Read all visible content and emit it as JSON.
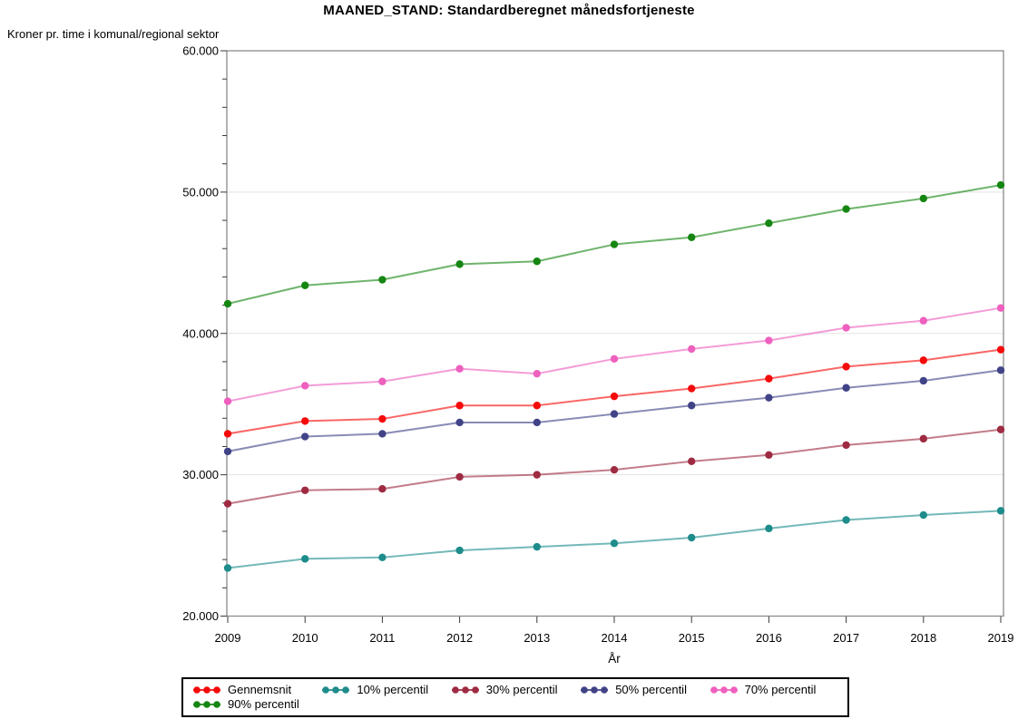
{
  "title": "MAANED_STAND: Standardberegnet månedsfortjeneste",
  "y_axis": {
    "label": "Kroner pr. time i komunal/regional sektor",
    "ticks": [
      {
        "value": 60000,
        "label": "60.000"
      },
      {
        "value": 50000,
        "label": "50.000"
      },
      {
        "value": 40000,
        "label": "40.000"
      },
      {
        "value": 30000,
        "label": "30.000"
      },
      {
        "value": 20000,
        "label": "20.000"
      }
    ],
    "minor_tick_step": 2000
  },
  "x_axis": {
    "label": "År",
    "tick_labels": [
      "2009",
      "2010",
      "2011",
      "2012",
      "2013",
      "2014",
      "2015",
      "2016",
      "2017",
      "2018",
      "2019"
    ]
  },
  "chart_data": {
    "type": "line",
    "title": "MAANED_STAND: Standardberegnet månedsfortjeneste",
    "xlabel": "År",
    "ylabel": "Kroner pr. time i komunal/regional sektor",
    "x": [
      2009,
      2010,
      2011,
      2012,
      2013,
      2014,
      2015,
      2016,
      2017,
      2018,
      2019
    ],
    "ylim": [
      20000,
      60000
    ],
    "y_major_step": 10000,
    "grid": "horizontal-major-only",
    "legend_position": "bottom-boxed",
    "marker": "filled-circle",
    "series": [
      {
        "name": "Gennemsnit",
        "color": "#F50A0A",
        "values": [
          32900,
          33800,
          33950,
          34900,
          34900,
          35550,
          36100,
          36800,
          37650,
          38100,
          38850
        ]
      },
      {
        "name": "10% percentil",
        "color": "#1F8C8C",
        "values": [
          23400,
          24050,
          24150,
          24650,
          24900,
          25150,
          25550,
          26200,
          26800,
          27150,
          27450
        ]
      },
      {
        "name": "30% percentil",
        "color": "#9E2B42",
        "values": [
          27950,
          28900,
          29000,
          29850,
          30000,
          30350,
          30950,
          31400,
          32100,
          32550,
          33200
        ]
      },
      {
        "name": "50% percentil",
        "color": "#414387",
        "values": [
          31650,
          32700,
          32900,
          33700,
          33700,
          34300,
          34900,
          35450,
          36150,
          36650,
          37400
        ]
      },
      {
        "name": "70% percentil",
        "color": "#EE60BE",
        "values": [
          35200,
          36300,
          36600,
          37500,
          37150,
          38200,
          38900,
          39500,
          40400,
          40900,
          41800
        ]
      },
      {
        "name": "90% percentil",
        "color": "#168613",
        "values": [
          42100,
          43400,
          43800,
          44900,
          45100,
          46300,
          46800,
          47800,
          48800,
          49550,
          50500
        ]
      }
    ]
  },
  "legend": {
    "layout_rows": [
      [
        0,
        1,
        2,
        3,
        4
      ],
      [
        5
      ]
    ]
  }
}
